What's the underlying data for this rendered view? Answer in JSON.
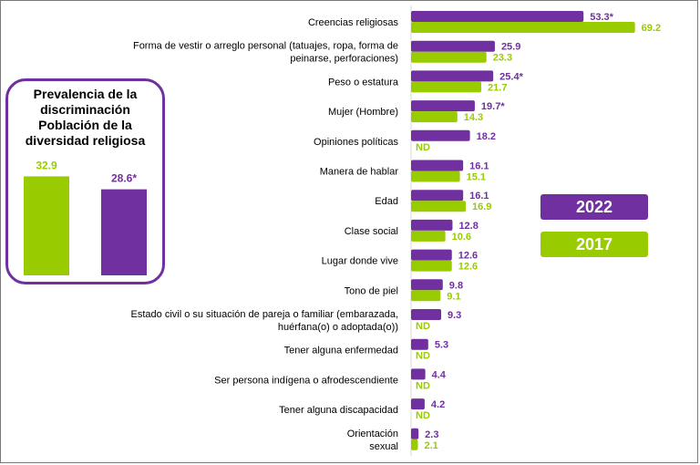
{
  "colors": {
    "series_2022": "#7030A0",
    "series_2017": "#99CC00",
    "nd_text": "#99CC00"
  },
  "inset": {
    "title": "Prevalencia de la discriminación Población de la diversidad religiosa",
    "title_lines": [
      "Prevalencia de la",
      "discriminación",
      "Población de la",
      "diversidad religiosa"
    ],
    "bars": [
      {
        "label": "32.9",
        "value": 32.9,
        "color": "#99CC00"
      },
      {
        "label": "28.6*",
        "value": 28.6,
        "color": "#7030A0"
      }
    ]
  },
  "legend": [
    {
      "label": "2022",
      "color": "#7030A0"
    },
    {
      "label": "2017",
      "color": "#99CC00"
    }
  ],
  "chart_data": {
    "type": "bar",
    "orientation": "horizontal",
    "categories": [
      "Creencias religiosas",
      "Forma de vestir o arreglo personal (tatuajes, ropa, forma de peinarse, perforaciones)",
      "Peso o estatura",
      "Mujer (Hombre)",
      "Opiniones políticas",
      "Manera de hablar",
      "Edad",
      "Clase social",
      "Lugar donde vive",
      "Tono de piel",
      "Estado civil o su situación de pareja o familiar (embarazada, huérfana(o) o adoptada(o))",
      "Tener alguna enfermedad",
      "Ser persona indígena o afrodescendiente",
      "Tener alguna discapacidad",
      "Orientación sexual"
    ],
    "category_lines": [
      [
        "Creencias religiosas"
      ],
      [
        "Forma de vestir o arreglo personal (tatuajes, ropa, forma de",
        "peinarse, perforaciones)"
      ],
      [
        "Peso o estatura"
      ],
      [
        "Mujer (Hombre)"
      ],
      [
        "Opiniones políticas"
      ],
      [
        "Manera de hablar"
      ],
      [
        "Edad"
      ],
      [
        "Clase social"
      ],
      [
        "Lugar donde vive"
      ],
      [
        "Tono de piel"
      ],
      [
        "Estado civil o su situación de pareja o familiar (embarazada,",
        "huérfana(o) o adoptada(o))"
      ],
      [
        "Tener alguna enfermedad"
      ],
      [
        "Ser persona indígena o afrodescendiente"
      ],
      [
        "Tener alguna discapacidad"
      ],
      [
        "Orientación",
        "sexual"
      ]
    ],
    "series": [
      {
        "name": "2022",
        "color": "#7030A0",
        "values": [
          53.3,
          25.9,
          25.4,
          19.7,
          18.2,
          16.1,
          16.1,
          12.8,
          12.6,
          9.8,
          9.3,
          5.3,
          4.4,
          4.2,
          2.3
        ],
        "labels": [
          "53.3*",
          "25.9",
          "25.4*",
          "19.7*",
          "18.2",
          "16.1",
          "16.1",
          "12.8",
          "12.6",
          "9.8",
          "9.3",
          "5.3",
          "4.4",
          "4.2",
          "2.3"
        ]
      },
      {
        "name": "2017",
        "color": "#99CC00",
        "values": [
          69.2,
          23.3,
          21.7,
          14.3,
          null,
          15.1,
          16.9,
          10.6,
          12.6,
          9.1,
          null,
          null,
          null,
          null,
          2.1
        ],
        "labels": [
          "69.2",
          "23.3",
          "21.7",
          "14.3",
          "ND",
          "15.1",
          "16.9",
          "10.6",
          "12.6",
          "9.1",
          "ND",
          "ND",
          "ND",
          "ND",
          "2.1"
        ]
      }
    ],
    "grid": false,
    "legend_position": "right"
  }
}
